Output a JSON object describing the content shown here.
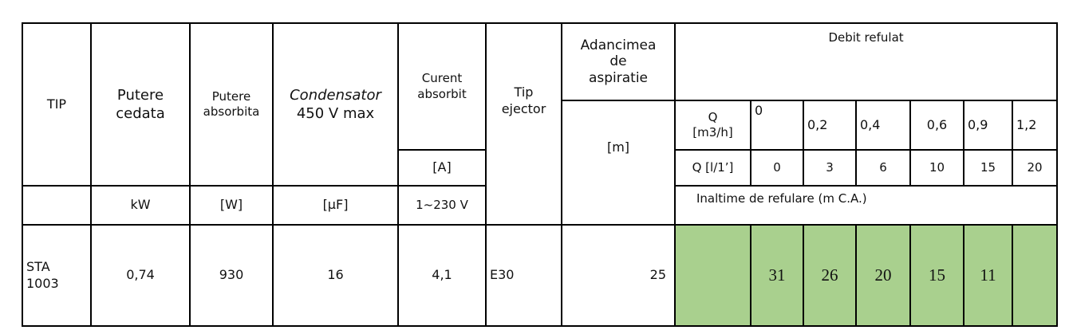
{
  "table": {
    "columns": {
      "tip": "TIP",
      "putere_cedata": "Putere\ncedata",
      "putere_absorbita": "Putere\nabsorbita",
      "condensator": "Condensator",
      "condensator_rating": "450 V max",
      "curent_absorbit": "Curent\nabsorbit",
      "tip_ejector": "Tip\nejector",
      "adancimea": "Adancimea\nde\naspiratie",
      "debit_refulat": "Debit refulat"
    },
    "units": {
      "putere_cedata": "kW",
      "putere_absorbita": "[W]",
      "condensator": "[μF]",
      "curent": "[A]",
      "tensiune": "1~230 V",
      "adancimea": "[m]"
    },
    "flow": {
      "q_m3h_label": "Q\n[m3/h]",
      "q_m3h": [
        "0",
        "0,2",
        "0,4",
        "0,6",
        "0,9",
        "1,2"
      ],
      "q_l_label": "Q [l/1’]",
      "q_l": [
        "0",
        "3",
        "6",
        "10",
        "15",
        "20"
      ]
    },
    "head_label": "Inaltime de refulare (m C.A.)",
    "rows": [
      {
        "model": "STA\n1003",
        "putere_cedata": "0,74",
        "putere_absorbita": "930",
        "condensator": "16",
        "curent": "4,1",
        "ejector": "E30",
        "adancimea": "25",
        "heads": [
          "31",
          "26",
          "20",
          "15",
          "11"
        ]
      }
    ]
  }
}
